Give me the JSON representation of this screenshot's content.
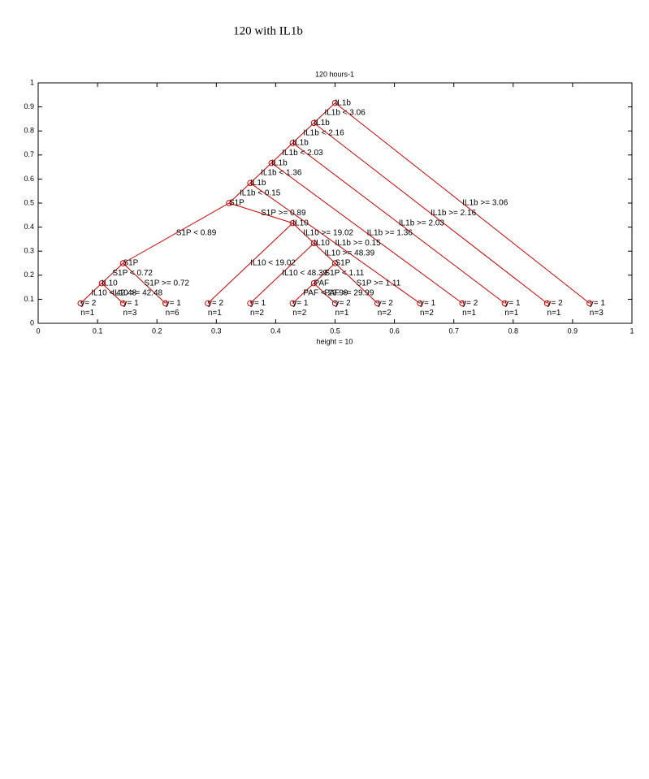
{
  "chart_data": {
    "type": "tree",
    "suptitle": "120 with IL1b",
    "title": "120 hours-1",
    "xlabel": "height = 10",
    "xlim": [
      0,
      1
    ],
    "ylim": [
      0,
      1
    ],
    "xticks": [
      0,
      0.1,
      0.2,
      0.3,
      0.4,
      0.5,
      0.6,
      0.7,
      0.8,
      0.9,
      1
    ],
    "yticks": [
      0,
      0.1,
      0.2,
      0.3,
      0.4,
      0.5,
      0.6,
      0.7,
      0.8,
      0.9,
      1
    ],
    "color": "#d00000",
    "nodes": [
      {
        "label": "IL1b",
        "x": 0.5,
        "y": 0.9167,
        "parent": null
      },
      {
        "label": "IL1b",
        "x": 0.4643,
        "y": 0.8333,
        "parent": 0,
        "split": "IL1b < 3.06"
      },
      {
        "label": "y= 1",
        "count": "n=3",
        "x": 0.9286,
        "y": 0.0833,
        "parent": 0,
        "split": "IL1b >= 3.06"
      },
      {
        "label": "IL1b",
        "x": 0.4286,
        "y": 0.75,
        "parent": 1,
        "split": "IL1b < 2.16"
      },
      {
        "label": "y= 2",
        "count": "n=1",
        "x": 0.8571,
        "y": 0.0833,
        "parent": 1,
        "split": "IL1b >= 2.16"
      },
      {
        "label": "IL1b",
        "x": 0.3929,
        "y": 0.6667,
        "parent": 3,
        "split": "IL1b < 2.03"
      },
      {
        "label": "y= 1",
        "count": "n=1",
        "x": 0.7857,
        "y": 0.0833,
        "parent": 3,
        "split": "IL1b >= 2.03"
      },
      {
        "label": "IL1b",
        "x": 0.3571,
        "y": 0.5833,
        "parent": 5,
        "split": "IL1b < 1.36"
      },
      {
        "label": "y= 2",
        "count": "n=1",
        "x": 0.7143,
        "y": 0.0833,
        "parent": 5,
        "split": "IL1b >= 1.36"
      },
      {
        "label": "S1P",
        "x": 0.3214,
        "y": 0.5,
        "parent": 7,
        "split": "IL1b < 0.15"
      },
      {
        "label": "y= 1",
        "count": "n=2",
        "x": 0.6429,
        "y": 0.0833,
        "parent": 7,
        "split": "IL1b >= 0.15"
      },
      {
        "label": "S1P",
        "x": 0.1429,
        "y": 0.25,
        "parent": 9,
        "split": "S1P < 0.89"
      },
      {
        "label": "IL10",
        "x": 0.4286,
        "y": 0.4167,
        "parent": 9,
        "split": "S1P >= 0.89"
      },
      {
        "label": "IL10",
        "x": 0.1071,
        "y": 0.1667,
        "parent": 11,
        "split": "S1P < 0.72"
      },
      {
        "label": "y= 1",
        "count": "n=6",
        "x": 0.2143,
        "y": 0.0833,
        "parent": 11,
        "split": "S1P >= 0.72"
      },
      {
        "label": "y= 2",
        "count": "n=1",
        "x": 0.0714,
        "y": 0.0833,
        "parent": 13,
        "split": "IL10 < 42.48"
      },
      {
        "label": "y= 1",
        "count": "n=3",
        "x": 0.1429,
        "y": 0.0833,
        "parent": 13,
        "split": "IL10 >= 42.48"
      },
      {
        "label": "y= 2",
        "count": "n=1",
        "x": 0.2857,
        "y": 0.0833,
        "parent": 12,
        "split": "IL10 < 19.02"
      },
      {
        "label": "IL10",
        "x": 0.4643,
        "y": 0.3333,
        "parent": 12,
        "split": "IL10 >= 19.02"
      },
      {
        "label": "y= 1",
        "count": "n=2",
        "x": 0.3571,
        "y": 0.0833,
        "parent": 18,
        "split": "IL10 < 48.39"
      },
      {
        "label": "S1P",
        "x": 0.5,
        "y": 0.25,
        "parent": 18,
        "split": "IL10 >= 48.39"
      },
      {
        "label": "PAF",
        "x": 0.4643,
        "y": 0.1667,
        "parent": 20,
        "split": "S1P < 1.11"
      },
      {
        "label": "y= 2",
        "count": "n=2",
        "x": 0.5714,
        "y": 0.0833,
        "parent": 20,
        "split": "S1P >= 1.11"
      },
      {
        "label": "y= 1",
        "count": "n=2",
        "x": 0.4286,
        "y": 0.0833,
        "parent": 21,
        "split": "PAF < 29.99"
      },
      {
        "label": "y= 2",
        "count": "n=1",
        "x": 0.5,
        "y": 0.0833,
        "parent": 21,
        "split": "PAF >= 29.99"
      }
    ]
  }
}
